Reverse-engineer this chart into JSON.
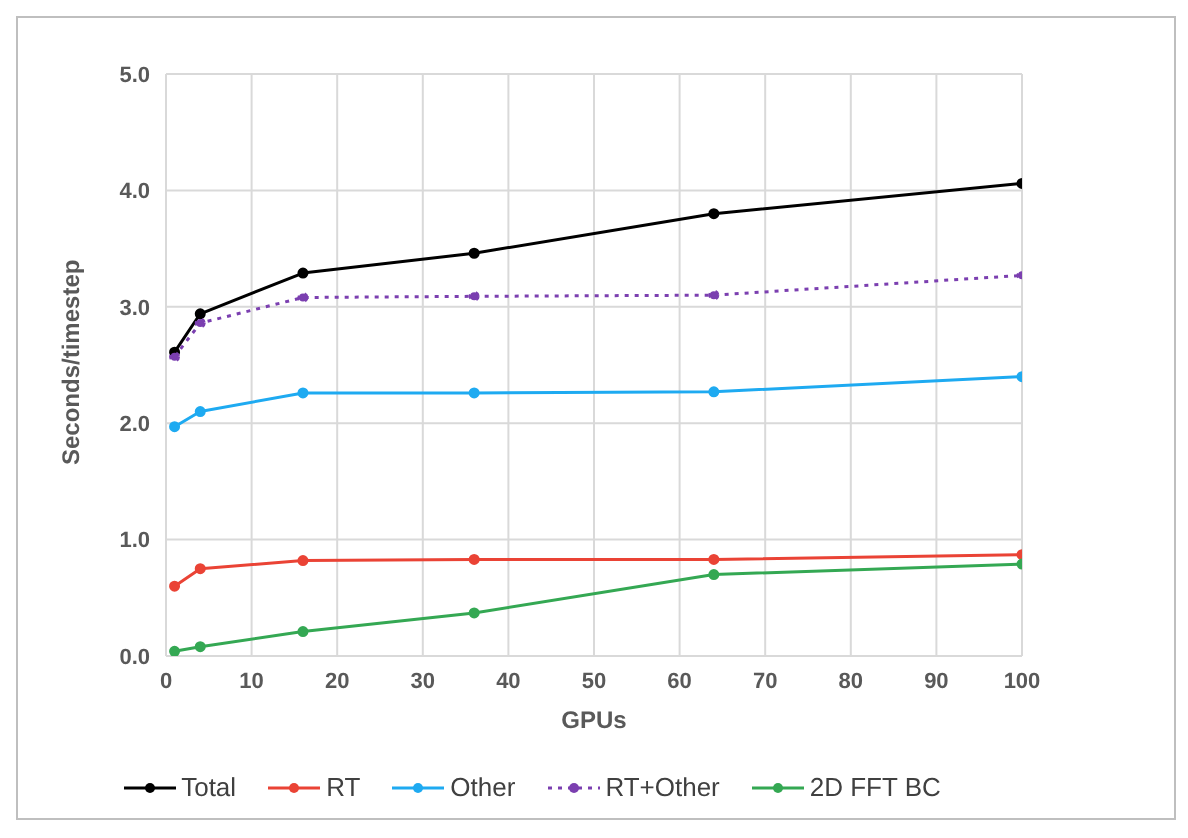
{
  "chart_data": {
    "type": "line",
    "xlabel": "GPUs",
    "ylabel": "Seconds/timestep",
    "x": [
      1,
      4,
      16,
      36,
      64,
      100
    ],
    "series": [
      {
        "name": "Total",
        "color": "#000000",
        "values": [
          2.61,
          2.94,
          3.29,
          3.46,
          3.8,
          4.06
        ]
      },
      {
        "name": "RT",
        "color": "#ea4335",
        "values": [
          0.6,
          0.75,
          0.82,
          0.83,
          0.83,
          0.87
        ]
      },
      {
        "name": "Other",
        "color": "#1eaaf1",
        "values": [
          1.97,
          2.1,
          2.26,
          2.26,
          2.27,
          2.4
        ]
      },
      {
        "name": "RT+Other",
        "color": "#7b3fb0",
        "values": [
          2.57,
          2.86,
          3.08,
          3.09,
          3.1,
          3.27
        ],
        "line_style": "dotted"
      },
      {
        "name": "2D FFT BC",
        "color": "#34a853",
        "values": [
          0.04,
          0.08,
          0.21,
          0.37,
          0.7,
          0.79
        ]
      }
    ],
    "xlim": [
      0,
      100
    ],
    "xticks": [
      0,
      10,
      20,
      30,
      40,
      50,
      60,
      70,
      80,
      90,
      100
    ],
    "ylim": [
      0,
      5
    ],
    "yticks": [
      {
        "value": 0,
        "label": "0.0"
      },
      {
        "value": 1,
        "label": "1.0"
      },
      {
        "value": 2,
        "label": "2.0"
      },
      {
        "value": 3,
        "label": "3.0"
      },
      {
        "value": 4,
        "label": "4.0"
      },
      {
        "value": 5,
        "label": "5.0"
      }
    ],
    "grid": true,
    "legend": "bottom",
    "marker": "circle"
  }
}
